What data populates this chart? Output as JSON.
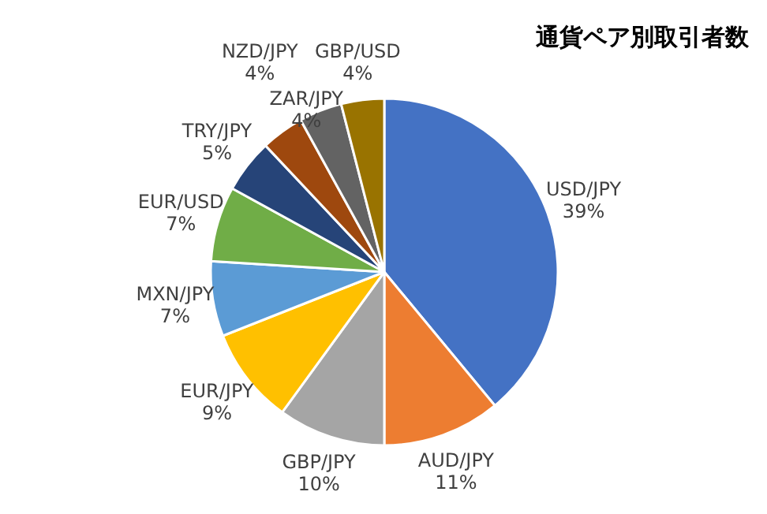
{
  "chart_data": {
    "type": "pie",
    "title": "通貨ペア別取引者数",
    "categories": [
      "USD/JPY",
      "AUD/JPY",
      "GBP/JPY",
      "EUR/JPY",
      "MXN/JPY",
      "EUR/USD",
      "TRY/JPY",
      "NZD/JPY",
      "ZAR/JPY",
      "GBP/USD"
    ],
    "values": [
      39,
      11,
      10,
      9,
      7,
      7,
      5,
      4,
      4,
      4
    ],
    "value_labels": [
      "39%",
      "11%",
      "10%",
      "9%",
      "7%",
      "7%",
      "5%",
      "4%",
      "4%",
      "4%"
    ],
    "colors": [
      "#4472c4",
      "#ed7d31",
      "#a5a5a5",
      "#ffc000",
      "#5b9bd5",
      "#70ad47",
      "#264478",
      "#9e480e",
      "#636363",
      "#997300"
    ]
  }
}
